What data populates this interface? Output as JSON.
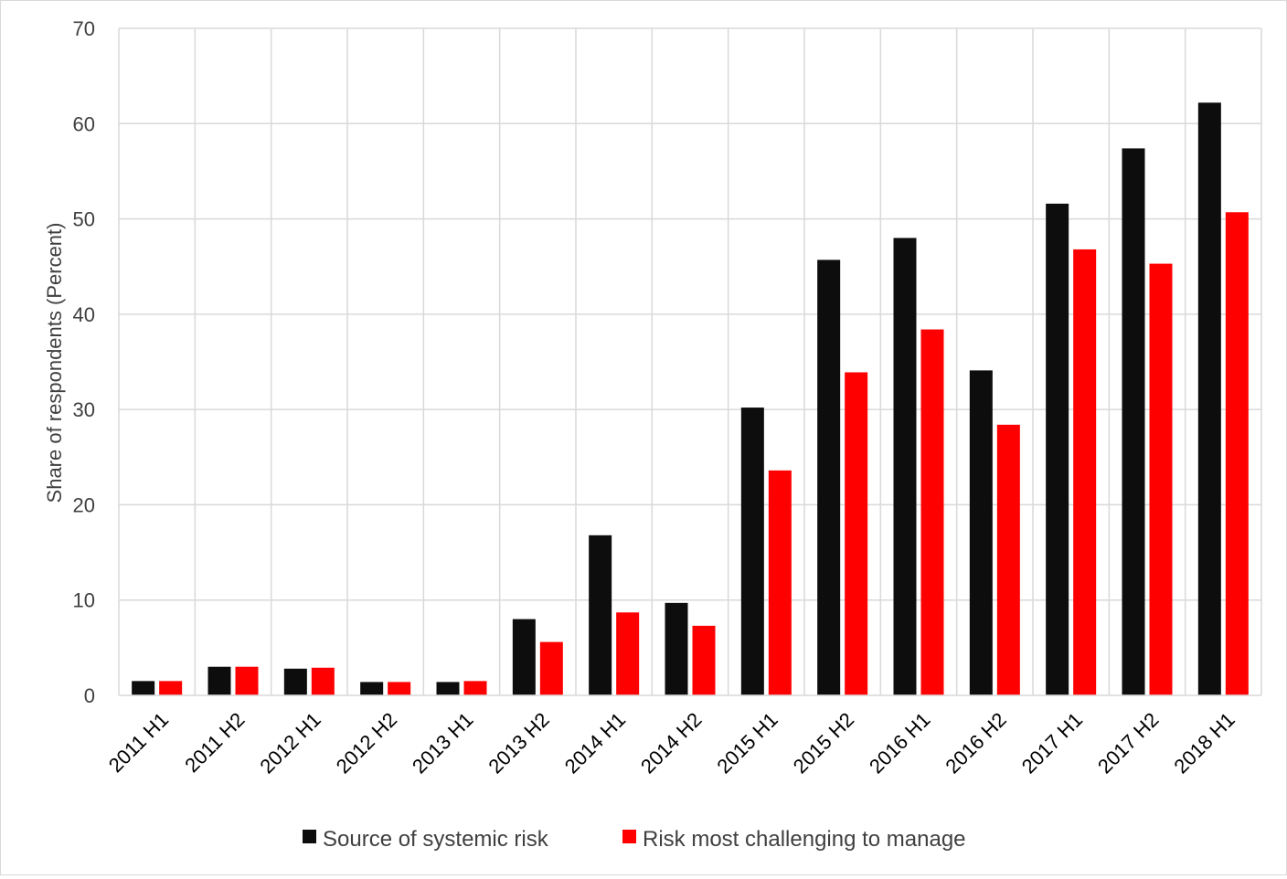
{
  "chart_data": {
    "type": "bar",
    "title": "",
    "xlabel": "",
    "ylabel": "Share of respondents (Percent)",
    "ylim": [
      0,
      70
    ],
    "yticks": [
      0,
      10,
      20,
      30,
      40,
      50,
      60,
      70
    ],
    "grid": true,
    "legend_position": "bottom",
    "categories": [
      "2011 H1",
      "2011 H2",
      "2012 H1",
      "2012 H2",
      "2013 H1",
      "2013 H2",
      "2014 H1",
      "2014 H2",
      "2015 H1",
      "2015 H2",
      "2016 H1",
      "2016 H2",
      "2017 H1",
      "2017 H2",
      "2018 H1"
    ],
    "series": [
      {
        "name": "Source of systemic risk",
        "color": "#0d0d0d",
        "values": [
          1.5,
          3.0,
          2.8,
          1.4,
          1.4,
          8.0,
          16.8,
          9.7,
          30.2,
          45.7,
          48.0,
          34.1,
          51.6,
          57.4,
          62.2
        ]
      },
      {
        "name": "Risk most challenging to manage",
        "color": "#ff0000",
        "values": [
          1.5,
          3.0,
          2.9,
          1.4,
          1.5,
          5.6,
          8.7,
          7.3,
          23.6,
          33.9,
          38.4,
          28.4,
          46.8,
          45.3,
          50.7
        ]
      }
    ]
  }
}
